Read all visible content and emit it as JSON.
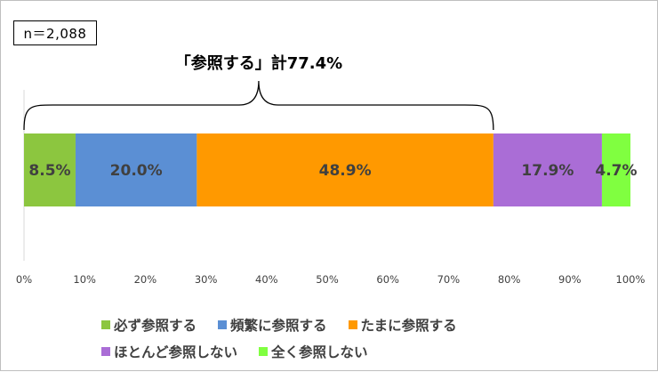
{
  "sample_label": "n＝2,088",
  "colors": {
    "axis": "#d9d9d9",
    "tick_text": "#404040",
    "segment_text": "#404040",
    "bracket": "#000000"
  },
  "chart_data": {
    "type": "bar",
    "orientation": "horizontal",
    "stacked": true,
    "xlim": [
      0,
      100
    ],
    "x_ticks": [
      "0%",
      "10%",
      "20%",
      "30%",
      "40%",
      "50%",
      "60%",
      "70%",
      "80%",
      "90%",
      "100%"
    ],
    "series": [
      {
        "name": "必ず参照する",
        "value": 8.5,
        "label": "8.5%",
        "color": "#8cc63f"
      },
      {
        "name": "頻繁に参照する",
        "value": 20.0,
        "label": "20.0%",
        "color": "#5b8fd4"
      },
      {
        "name": "たまに参照する",
        "value": 48.9,
        "label": "48.9%",
        "color": "#ff9900"
      },
      {
        "name": "ほとんど参照しない",
        "value": 17.9,
        "label": "17.9%",
        "color": "#aa6dd6"
      },
      {
        "name": "全く参照しない",
        "value": 4.7,
        "label": "4.7%",
        "color": "#80ff40"
      }
    ],
    "annotation": {
      "text": "「参照する」計77.4%",
      "from": 0,
      "to": 77.4
    },
    "legend_position": "bottom"
  }
}
